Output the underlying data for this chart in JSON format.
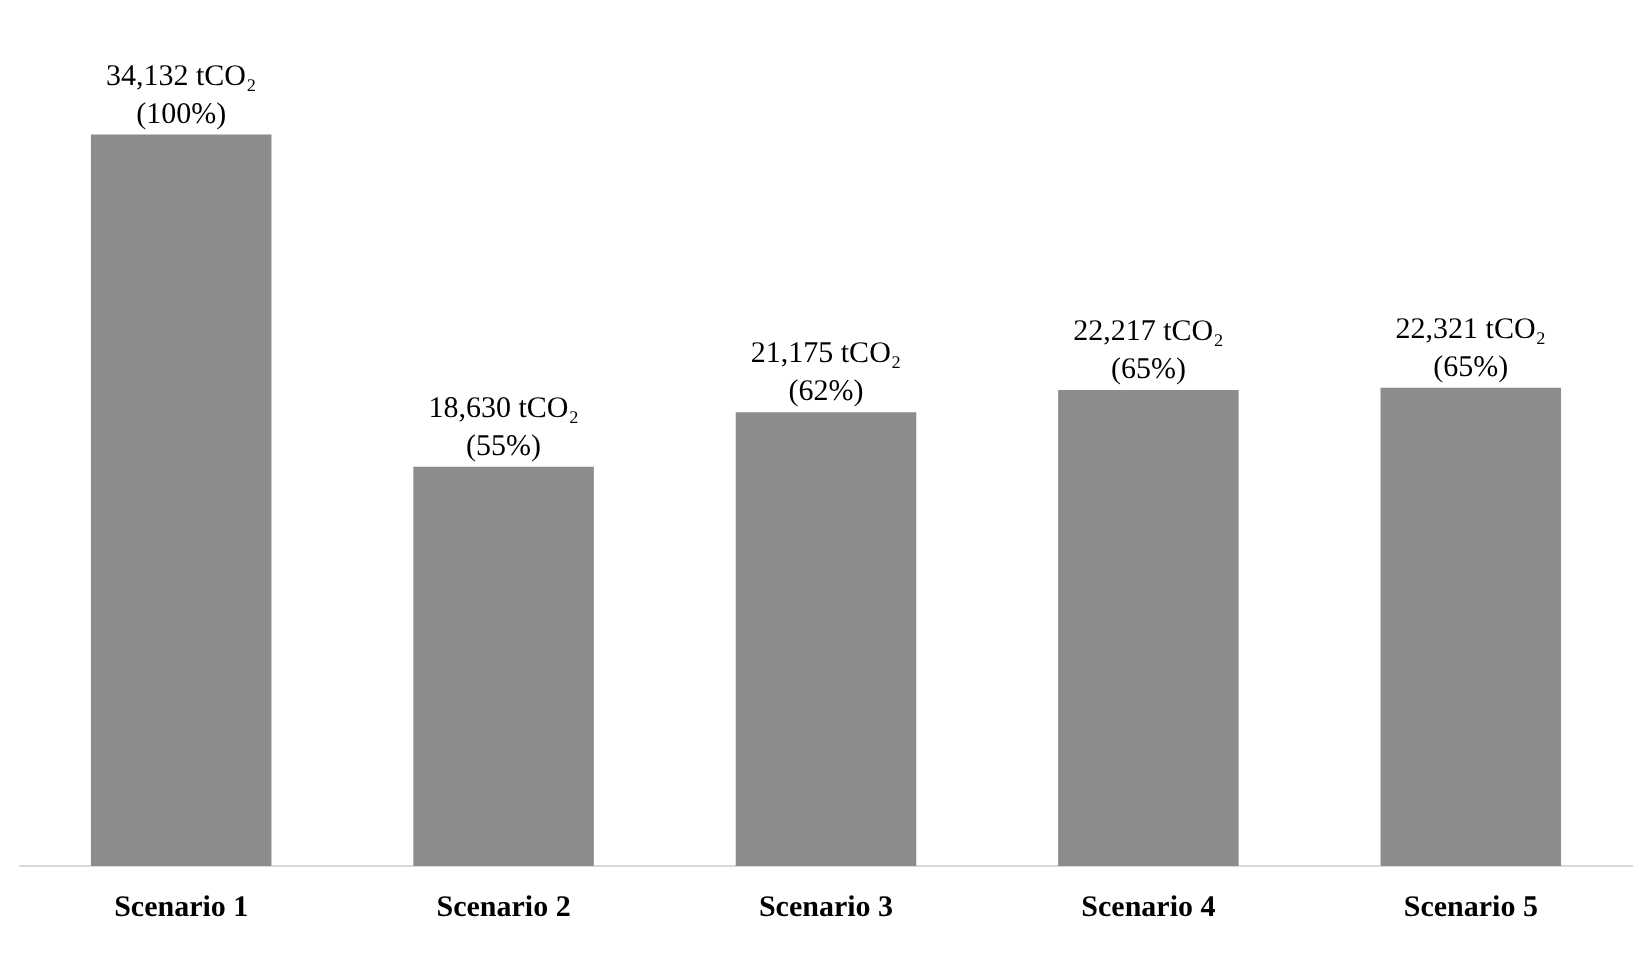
{
  "chart_data": {
    "type": "bar",
    "categories": [
      "Scenario 1",
      "Scenario 2",
      "Scenario 3",
      "Scenario 4",
      "Scenario 5"
    ],
    "values": [
      34132,
      18630,
      21175,
      22217,
      22321
    ],
    "value_labels": [
      "34,132 tCO₂\n(100%)",
      "18,630 tCO₂\n(55%)",
      "21,175 tCO₂\n(62%)",
      "22,217 tCO₂\n(65%)",
      "22,321 tCO₂\n(65%)"
    ],
    "color": "#8c8c8c",
    "grid": false,
    "legend": false
  }
}
